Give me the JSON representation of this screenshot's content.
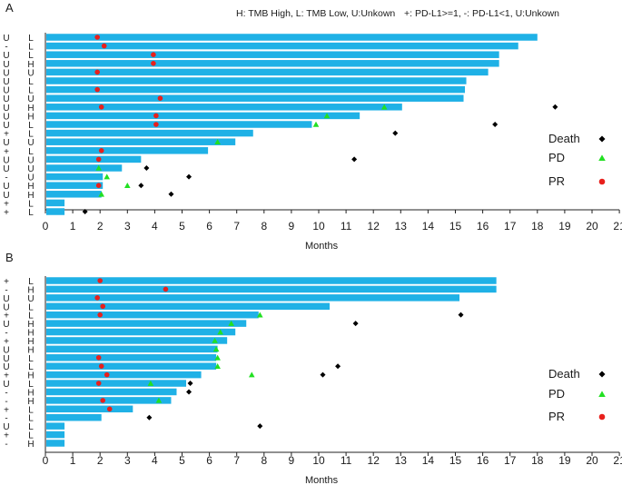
{
  "colors": {
    "bar": "#1FB1E6",
    "death": "#000000",
    "pd": "#22E022",
    "pr": "#E8201C"
  },
  "chart_data": [
    {
      "type": "bar",
      "panel_label": "A",
      "xlabel": "Months",
      "xlim": [
        0,
        21
      ],
      "xticks": [
        "0",
        "1",
        "2",
        "3",
        "4",
        "5",
        "6",
        "7",
        "8",
        "9",
        "10",
        "11",
        "12",
        "13",
        "14",
        "15",
        "16",
        "17",
        "18",
        "19",
        "20",
        "21"
      ],
      "legend_note_left": "H: TMB High, L: TMB Low, U:Unkown",
      "legend_note_right": "+: PD-L1>=1, -: PD-L1<1, U:Unkown",
      "legend_position": "right",
      "legend": {
        "death": "Death",
        "pd": "PD",
        "pr": "PR"
      },
      "rows": [
        {
          "pdl1": "U",
          "tmb": "L",
          "months": 18.0,
          "pr": 1.9
        },
        {
          "pdl1": "-",
          "tmb": "L",
          "months": 17.3,
          "pr": 2.15
        },
        {
          "pdl1": "U",
          "tmb": "L",
          "months": 16.6,
          "pr": 3.95
        },
        {
          "pdl1": "U",
          "tmb": "H",
          "months": 16.6,
          "pr": 3.95
        },
        {
          "pdl1": "U",
          "tmb": "U",
          "months": 16.2,
          "pr": 1.9
        },
        {
          "pdl1": "U",
          "tmb": "L",
          "months": 15.4
        },
        {
          "pdl1": "U",
          "tmb": "L",
          "months": 15.35,
          "pr": 1.9
        },
        {
          "pdl1": "U",
          "tmb": "U",
          "months": 15.3,
          "pr": 4.2
        },
        {
          "pdl1": "U",
          "tmb": "H",
          "months": 13.05,
          "pr": 2.05,
          "pd": 12.4,
          "death": 18.65
        },
        {
          "pdl1": "U",
          "tmb": "H",
          "months": 11.5,
          "pr": 4.05,
          "pd": 10.3
        },
        {
          "pdl1": "U",
          "tmb": "L",
          "months": 9.75,
          "pr": 4.05,
          "pd": 9.9,
          "death": 16.45
        },
        {
          "pdl1": "+",
          "tmb": "L",
          "months": 7.6,
          "death": 12.8
        },
        {
          "pdl1": "U",
          "tmb": "U",
          "months": 6.95,
          "pd": 6.3
        },
        {
          "pdl1": "+",
          "tmb": "L",
          "months": 5.95,
          "pr": 2.05
        },
        {
          "pdl1": "U",
          "tmb": "U",
          "months": 3.5,
          "pr": 1.95,
          "death": 11.3
        },
        {
          "pdl1": "U",
          "tmb": "U",
          "months": 2.8,
          "pd": 1.95,
          "death": 3.7
        },
        {
          "pdl1": "-",
          "tmb": "U",
          "months": 2.1,
          "pd": 2.25,
          "death": 5.25
        },
        {
          "pdl1": "U",
          "tmb": "H",
          "months": 2.1,
          "pr": 1.95,
          "pd": 3.0,
          "death": 3.5
        },
        {
          "pdl1": "U",
          "tmb": "H",
          "months": 2.05,
          "pd": 2.05,
          "death": 4.6
        },
        {
          "pdl1": "+",
          "tmb": "L",
          "months": 0.7
        },
        {
          "pdl1": "+",
          "tmb": "L",
          "months": 0.7,
          "death": 1.45
        }
      ]
    },
    {
      "type": "bar",
      "panel_label": "B",
      "xlabel": "Months",
      "xlim": [
        0,
        21
      ],
      "xticks": [
        "0",
        "1",
        "2",
        "3",
        "4",
        "5",
        "6",
        "7",
        "8",
        "9",
        "10",
        "11",
        "12",
        "13",
        "14",
        "15",
        "16",
        "17",
        "18",
        "19",
        "20",
        "21"
      ],
      "legend_position": "right",
      "legend": {
        "death": "Death",
        "pd": "PD",
        "pr": "PR"
      },
      "rows": [
        {
          "pdl1": "+",
          "tmb": "L",
          "months": 16.5,
          "pr": 2.0
        },
        {
          "pdl1": "-",
          "tmb": "H",
          "months": 16.5,
          "pr": 4.4
        },
        {
          "pdl1": "U",
          "tmb": "U",
          "months": 15.15,
          "pr": 1.9
        },
        {
          "pdl1": "U",
          "tmb": "L",
          "months": 10.4,
          "pr": 2.1
        },
        {
          "pdl1": "+",
          "tmb": "L",
          "months": 7.8,
          "pr": 2.0,
          "pd": 7.85,
          "death": 15.2
        },
        {
          "pdl1": "U",
          "tmb": "H",
          "months": 7.35,
          "pd": 6.8,
          "death": 11.35
        },
        {
          "pdl1": "-",
          "tmb": "H",
          "months": 6.95,
          "pd": 6.4
        },
        {
          "pdl1": "+",
          "tmb": "H",
          "months": 6.65,
          "pd": 6.2
        },
        {
          "pdl1": "U",
          "tmb": "H",
          "months": 6.3,
          "pd": 6.25
        },
        {
          "pdl1": "U",
          "tmb": "L",
          "months": 6.25,
          "pr": 1.95,
          "pd": 6.3
        },
        {
          "pdl1": "U",
          "tmb": "L",
          "months": 6.25,
          "pr": 2.05,
          "pd": 6.3,
          "death": 10.7
        },
        {
          "pdl1": "+",
          "tmb": "H",
          "months": 5.7,
          "pr": 2.25,
          "pd": 7.55,
          "death": 10.15
        },
        {
          "pdl1": "U",
          "tmb": "L",
          "months": 5.15,
          "pr": 1.95,
          "pd": 3.85,
          "death": 5.3
        },
        {
          "pdl1": "-",
          "tmb": "H",
          "months": 4.8,
          "death": 5.25
        },
        {
          "pdl1": "-",
          "tmb": "H",
          "months": 4.6,
          "pr": 2.1,
          "pd": 4.15
        },
        {
          "pdl1": "+",
          "tmb": "L",
          "months": 3.2,
          "pr": 2.35
        },
        {
          "pdl1": "-",
          "tmb": "L",
          "months": 2.05,
          "death": 3.8
        },
        {
          "pdl1": "U",
          "tmb": "L",
          "months": 0.7,
          "death": 7.85
        },
        {
          "pdl1": "+",
          "tmb": "L",
          "months": 0.7
        },
        {
          "pdl1": "-",
          "tmb": "H",
          "months": 0.7
        }
      ]
    }
  ]
}
